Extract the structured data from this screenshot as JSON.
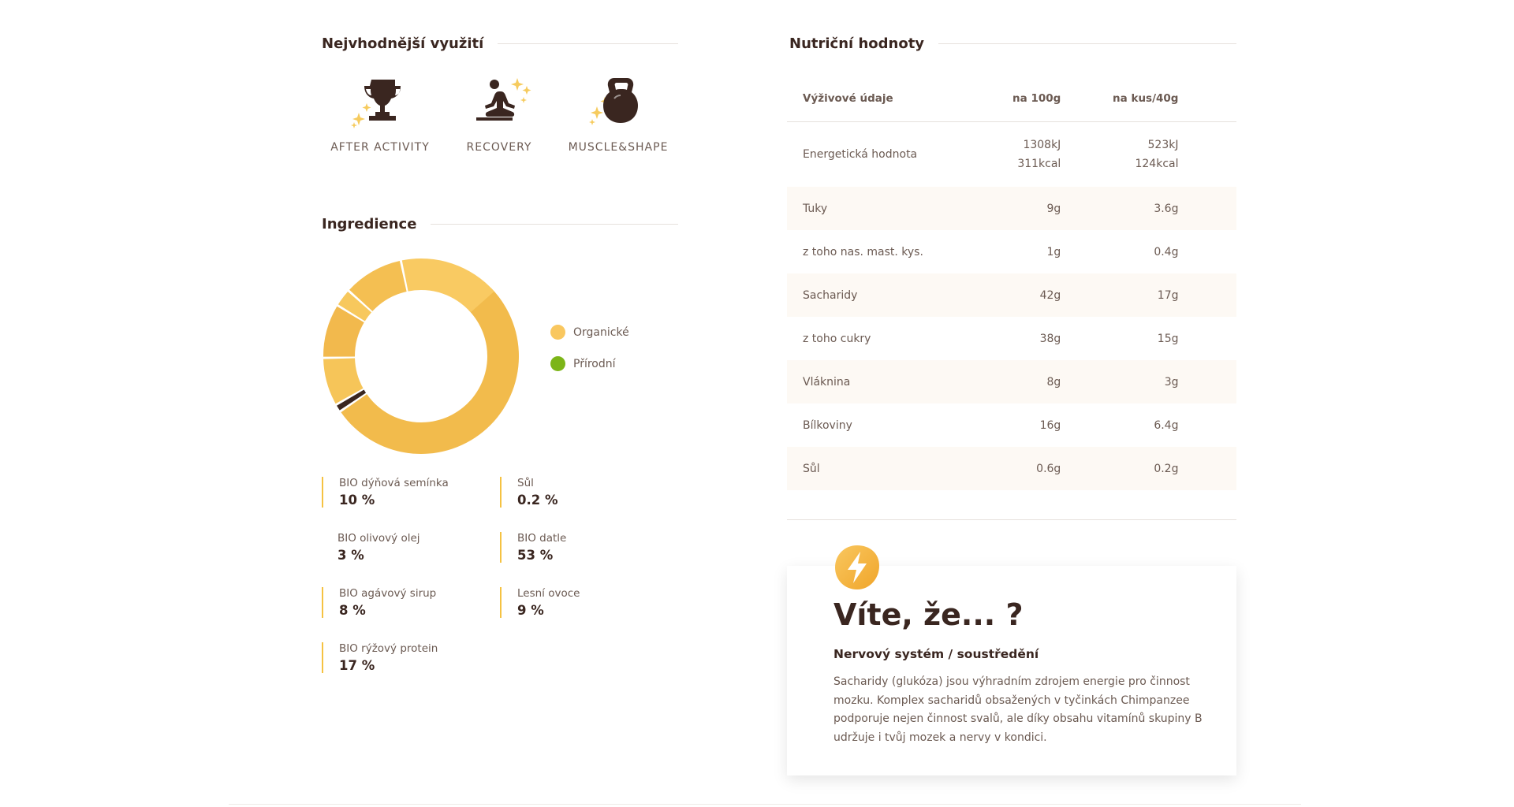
{
  "usage_section": {
    "title": "Nejvhodnější využití",
    "items": [
      {
        "label": "AFTER ACTIVITY",
        "icon": "trophy-icon"
      },
      {
        "label": "RECOVERY",
        "icon": "meditation-icon"
      },
      {
        "label": "MUSCLE&SHAPE",
        "icon": "kettlebell-icon"
      }
    ]
  },
  "ingredients_section": {
    "title": "Ingredience",
    "legend": [
      {
        "label": "Organické",
        "color": "#f9c75f"
      },
      {
        "label": "Přírodní",
        "color": "#7cb518"
      }
    ],
    "items": [
      {
        "name": "BIO dýňová semínka",
        "pct": "10 %"
      },
      {
        "name": "Sůl",
        "pct": "0.2 %"
      },
      {
        "name": "BIO olivový olej",
        "pct": "3 %"
      },
      {
        "name": "BIO datle",
        "pct": "53 %"
      },
      {
        "name": "BIO agávový sirup",
        "pct": "8 %"
      },
      {
        "name": "Lesní ovoce",
        "pct": "9 %"
      },
      {
        "name": "BIO rýžový protein",
        "pct": "17 %"
      }
    ]
  },
  "nutrition_section": {
    "title": "Nutriční hodnoty",
    "headers": [
      "Výživové údaje",
      "na 100g",
      "na kus/40g"
    ],
    "energy": {
      "label": "Energetická hodnota",
      "per100_kj": "1308kJ",
      "per100_kcal": "311kcal",
      "perpc_kj": "523kJ",
      "perpc_kcal": "124kcal"
    },
    "rows": [
      {
        "label": "Tuky",
        "per100": "9g",
        "perpc": "3.6g"
      },
      {
        "label": "z toho nas. mast. kys.",
        "per100": "1g",
        "perpc": "0.4g"
      },
      {
        "label": "Sacharidy",
        "per100": "42g",
        "perpc": "17g"
      },
      {
        "label": "z toho cukry",
        "per100": "38g",
        "perpc": "15g"
      },
      {
        "label": "Vláknina",
        "per100": "8g",
        "perpc": "3g"
      },
      {
        "label": "Bílkoviny",
        "per100": "16g",
        "perpc": "6.4g"
      },
      {
        "label": "Sůl",
        "per100": "0.6g",
        "perpc": "0.2g"
      }
    ]
  },
  "fact_card": {
    "title": "Víte, že... ?",
    "subtitle": "Nervový systém / soustředění",
    "body": "Sacharidy (glukóza) jsou výhradním zdrojem energie pro činnost mozku. Komplex sacharidů obsažených v tyčinkách Chimpanzee podporuje nejen činnost svalů, ale díky obsahu vitamínů skupiny B udržuje i tvůj mozek a nervy v kondici.",
    "icon": "lightning-icon"
  },
  "colors": {
    "brown": "#3a2620",
    "gold": "#f5c242",
    "gold_light": "#f9c75f",
    "green": "#7cb518"
  }
}
